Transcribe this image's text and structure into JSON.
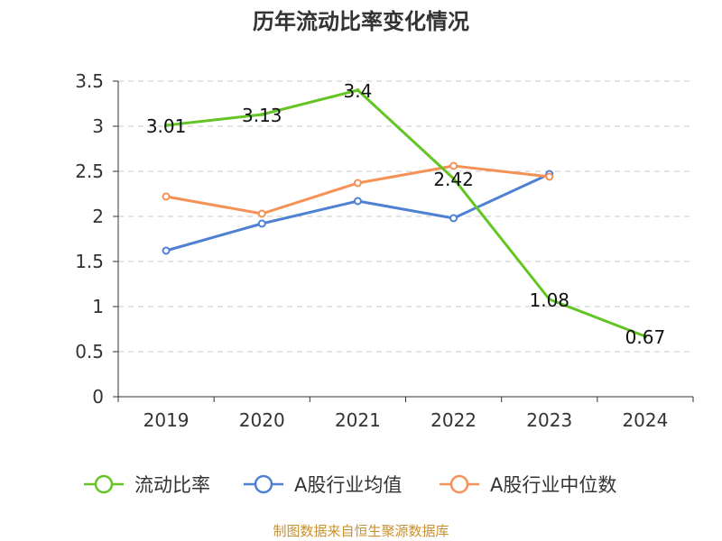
{
  "chart_data": {
    "type": "line",
    "title": "历年流动比率变化情况",
    "categories": [
      "2019",
      "2020",
      "2021",
      "2022",
      "2023",
      "2024"
    ],
    "ylim": [
      0,
      3.5
    ],
    "yticks": [
      "0",
      "0.5",
      "1",
      "1.5",
      "2",
      "2.5",
      "3",
      "3.5"
    ],
    "grid": true,
    "legend_position": "bottom",
    "series": [
      {
        "name": "流动比率",
        "color": "#63c524",
        "values": [
          3.01,
          3.13,
          3.4,
          2.42,
          1.08,
          0.67
        ],
        "labels": [
          "3.01",
          "3.13",
          "3.4",
          "2.42",
          "1.08",
          "0.67"
        ]
      },
      {
        "name": "A股行业均值",
        "color": "#4e80d4",
        "values": [
          1.62,
          1.92,
          2.17,
          1.98,
          2.47,
          null
        ]
      },
      {
        "name": "A股行业中位数",
        "color": "#f69155",
        "values": [
          2.22,
          2.03,
          2.37,
          2.56,
          2.44,
          null
        ]
      }
    ]
  },
  "footer": {
    "source": "制图数据来自恒生聚源数据库",
    "source_color": "#c8912f"
  }
}
